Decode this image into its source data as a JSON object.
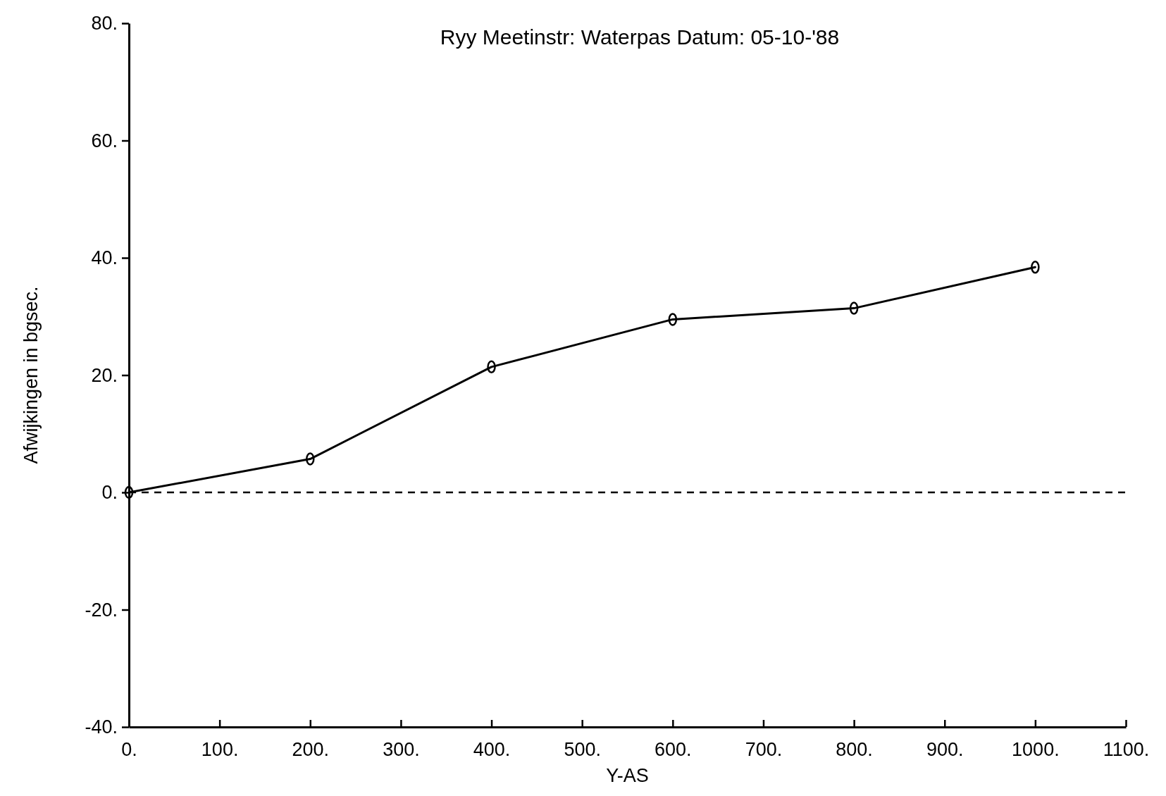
{
  "chart_data": {
    "type": "line",
    "subtitle": "Ryy   Meetinstr: Waterpas   Datum: 05-10-'88",
    "xlabel": "Y-AS",
    "ylabel": "Afwijkingen in bgsec.",
    "x": [
      0,
      200,
      400,
      600,
      800,
      1000
    ],
    "series": [
      {
        "color": "#000000",
        "values": [
          0,
          5.7,
          21.4,
          29.5,
          31.4,
          38.4
        ]
      }
    ],
    "marker": "circle",
    "line_style": "solid",
    "grid": false,
    "xlim": [
      0,
      1100
    ],
    "xticks": [
      {
        "value": 0,
        "label": "0."
      },
      {
        "value": 100,
        "label": "100."
      },
      {
        "value": 200,
        "label": "200."
      },
      {
        "value": 300,
        "label": "300."
      },
      {
        "value": 400,
        "label": "400."
      },
      {
        "value": 500,
        "label": "500."
      },
      {
        "value": 600,
        "label": "600."
      },
      {
        "value": 700,
        "label": "700."
      },
      {
        "value": 800,
        "label": "800."
      },
      {
        "value": 900,
        "label": "900."
      },
      {
        "value": 1000,
        "label": "1000."
      },
      {
        "value": 1100,
        "label": "1100."
      }
    ],
    "ylim": [
      -40,
      80
    ],
    "yticks": [
      {
        "value": -40,
        "label": "-40."
      },
      {
        "value": -20,
        "label": "-20."
      },
      {
        "value": 0,
        "label": "0."
      },
      {
        "value": 20,
        "label": "20."
      },
      {
        "value": 40,
        "label": "40."
      },
      {
        "value": 60,
        "label": "60."
      },
      {
        "value": 80,
        "label": "80."
      }
    ],
    "ref_lines": [
      {
        "axis": "y",
        "value": 0,
        "line_style": "dashed",
        "color": "#000000"
      }
    ]
  }
}
